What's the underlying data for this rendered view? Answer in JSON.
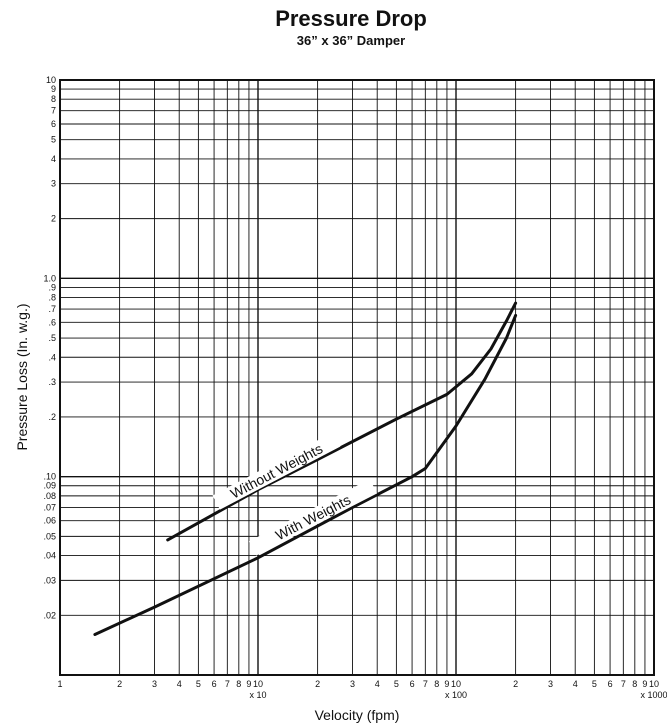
{
  "chart_data": {
    "type": "line",
    "title": "Pressure Drop",
    "subtitle": "36” x 36” Damper",
    "xlabel": "Velocity (fpm)",
    "ylabel": "Pressure Loss (In. w.g.)",
    "xscale": "log",
    "yscale": "log",
    "xlim": [
      10,
      10000
    ],
    "ylim": [
      0.01,
      10
    ],
    "grid": true,
    "legend": "none",
    "x_tick_labels": [
      "1",
      "2",
      "3",
      "4",
      "5",
      "6",
      "7",
      "8",
      "9",
      "10",
      "2",
      "3",
      "4",
      "5",
      "6",
      "7",
      "8",
      "9",
      "10",
      "2",
      "3",
      "4",
      "5",
      "6",
      "7",
      "8",
      "9",
      "10"
    ],
    "x_decade_labels": [
      "x 10",
      "x 100",
      "x 1000"
    ],
    "y_tick_labels": [
      ".02",
      ".03",
      ".04",
      ".05",
      ".06",
      ".07",
      ".08",
      ".09",
      ".10",
      ".2",
      ".3",
      ".4",
      ".5",
      ".6",
      ".7",
      ".8",
      ".9",
      "1.0",
      "2",
      "3",
      "4",
      "5",
      "6",
      "7",
      "8",
      "9",
      "10"
    ],
    "series": [
      {
        "name": "Without Weights",
        "x": [
          35,
          100,
          200,
          500,
          900,
          1200,
          1500,
          1800,
          2000
        ],
        "y": [
          0.048,
          0.086,
          0.122,
          0.195,
          0.26,
          0.33,
          0.44,
          0.61,
          0.75
        ]
      },
      {
        "name": "With Weights",
        "x": [
          15,
          30,
          100,
          300,
          600,
          700,
          1000,
          1400,
          1800,
          2000
        ],
        "y": [
          0.016,
          0.022,
          0.039,
          0.07,
          0.1,
          0.11,
          0.18,
          0.31,
          0.5,
          0.65
        ]
      }
    ]
  }
}
